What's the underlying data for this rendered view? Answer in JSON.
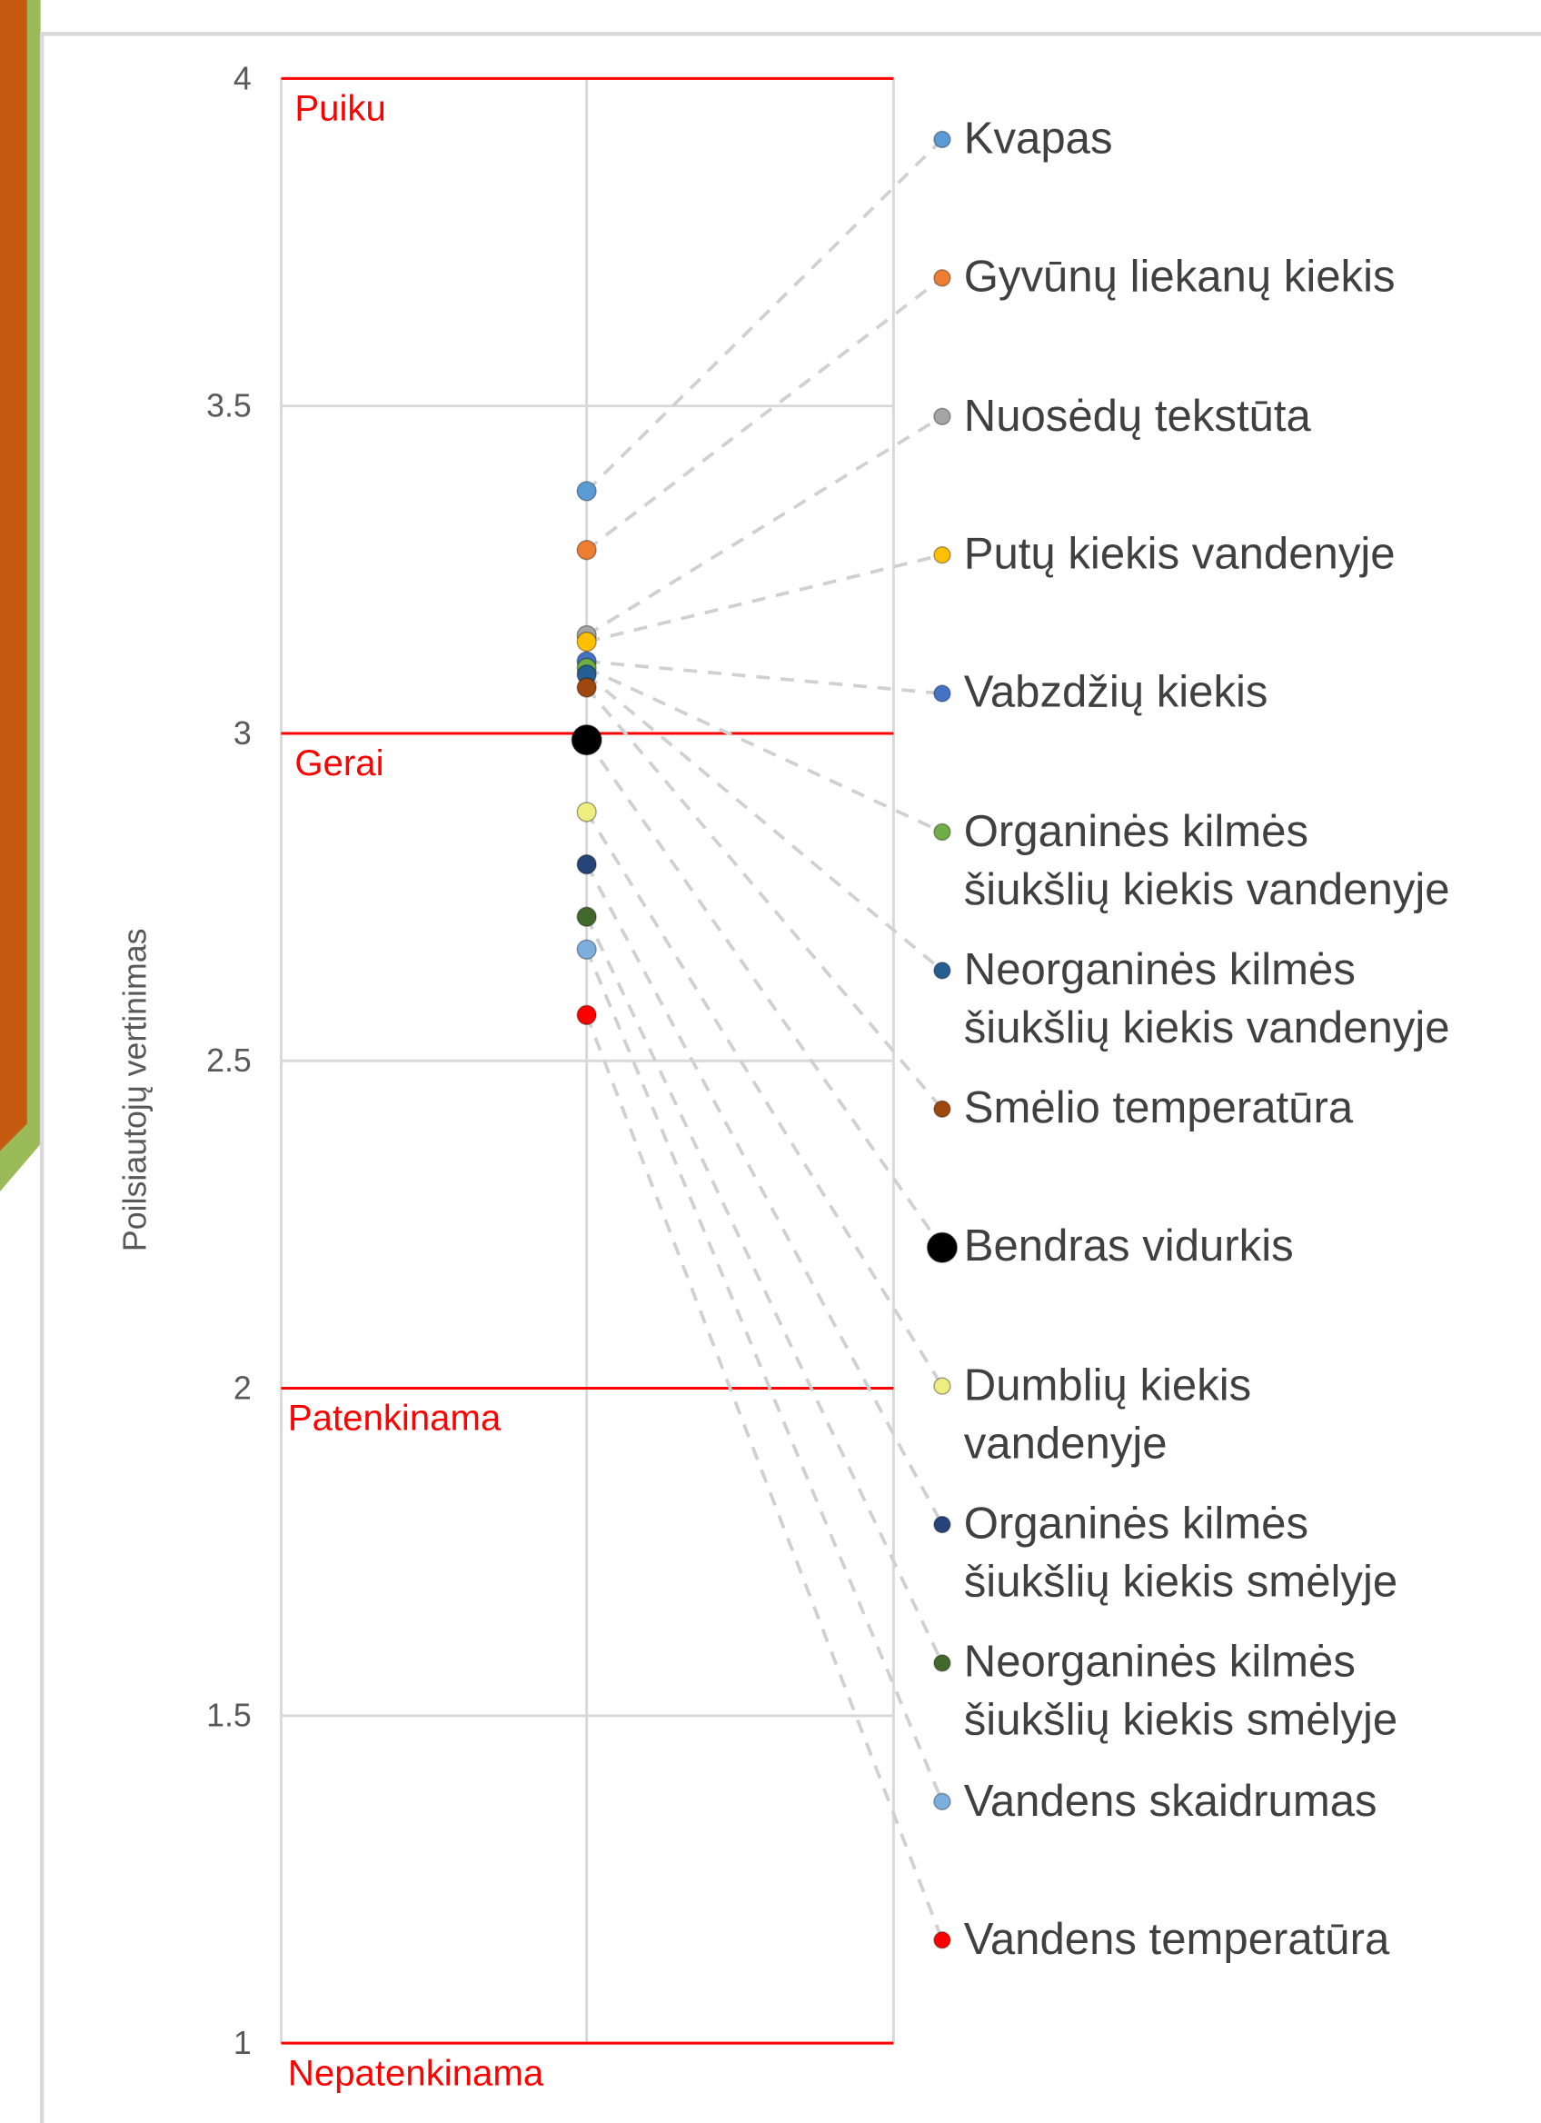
{
  "chart_data": {
    "type": "dot",
    "y_label": "Poilsiautojų vertinimas",
    "ylim": [
      1,
      4
    ],
    "yticks": [
      1,
      1.5,
      2,
      2.5,
      3,
      3.5,
      4
    ],
    "grid": true,
    "thresholds": [
      {
        "value": 4,
        "label": "Puiku"
      },
      {
        "value": 3,
        "label": "Gerai"
      },
      {
        "value": 2,
        "label": "Patenkinama"
      },
      {
        "value": 1,
        "label": "Nepatenkinama"
      }
    ],
    "threshold_color": "#ff0000",
    "series": [
      {
        "name": "Kvapas",
        "color": "#5b9bd5",
        "values": [
          3.37
        ]
      },
      {
        "name": "Gyvūnų liekanų kiekis",
        "color": "#ed7d31",
        "values": [
          3.28
        ]
      },
      {
        "name": "Nuosėdų tekstūta",
        "color": "#a5a5a5",
        "values": [
          3.15
        ]
      },
      {
        "name": "Putų kiekis vandenyje",
        "color": "#ffc000",
        "values": [
          3.14
        ]
      },
      {
        "name": "Vabzdžių kiekis",
        "color": "#4472c4",
        "values": [
          3.11
        ]
      },
      {
        "name": "Organinės kilmės\nšiukšlių kiekis vandenyje",
        "color": "#70ad47",
        "values": [
          3.1
        ]
      },
      {
        "name": "Neorganinės kilmės\nšiukšlių kiekis vandenyje",
        "color": "#255e91",
        "values": [
          3.09
        ]
      },
      {
        "name": "Smėlio temperatūra",
        "color": "#9e480e",
        "values": [
          3.07
        ]
      },
      {
        "name": "Bendras vidurkis",
        "color": "#000000",
        "values": [
          2.99
        ]
      },
      {
        "name": "Dumblių kiekis\nvandenyje",
        "color": "#eeee80",
        "values": [
          2.88
        ]
      },
      {
        "name": "Organinės kilmės\nšiukšlių kiekis smėlyje",
        "color": "#264478",
        "values": [
          2.8
        ]
      },
      {
        "name": "Neorganinės kilmės\nšiukšlių kiekis smėlyje",
        "color": "#43682b",
        "values": [
          2.72
        ]
      },
      {
        "name": "Vandens skaidrumas",
        "color": "#7cafdd",
        "values": [
          2.67
        ]
      },
      {
        "name": "Vandens temperatūra",
        "color": "#ff0000",
        "values": [
          2.57
        ]
      }
    ]
  }
}
